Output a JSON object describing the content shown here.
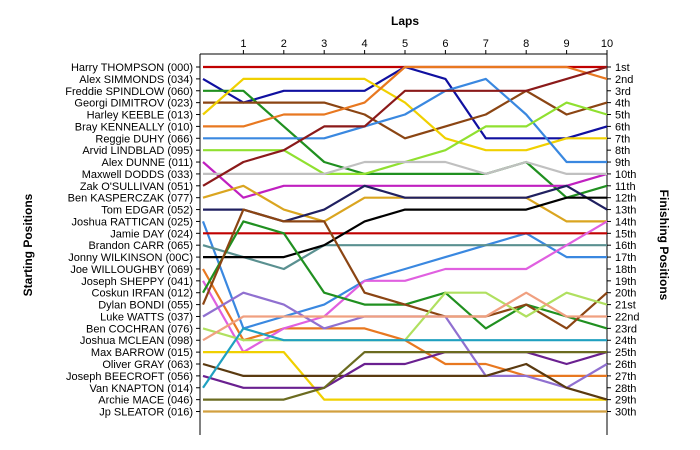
{
  "chart_data": {
    "type": "line",
    "x_title": "Laps",
    "y_left_title": "Starting Positions",
    "y_right_title": "Finishing Positions",
    "laps": [
      1,
      2,
      3,
      4,
      5,
      6,
      7,
      8,
      9,
      10
    ],
    "position_labels": [
      "1st",
      "2nd",
      "3rd",
      "4th",
      "5th",
      "6th",
      "7th",
      "8th",
      "9th",
      "10th",
      "11th",
      "12th",
      "13th",
      "14th",
      "15th",
      "16th",
      "17th",
      "18th",
      "19th",
      "20th",
      "21st",
      "22nd",
      "23rd",
      "24th",
      "25th",
      "26th",
      "27th",
      "28th",
      "29th",
      "30th"
    ],
    "series": [
      {
        "name": "Harry THOMPSON (000)",
        "color": "#C00000",
        "positions": [
          1,
          1,
          1,
          1,
          1,
          1,
          1,
          1,
          1,
          1,
          1
        ]
      },
      {
        "name": "Alex SIMMONDS (034)",
        "color": "#1010A0",
        "positions": [
          2,
          4,
          3,
          3,
          3,
          1,
          2,
          7,
          7,
          7,
          6
        ]
      },
      {
        "name": "Freddie SPINDLOW (060)",
        "color": "#209020",
        "positions": [
          3,
          3,
          6,
          9,
          10,
          10,
          10,
          10,
          9,
          12,
          11
        ]
      },
      {
        "name": "Georgi DIMITROV (023)",
        "color": "#8B4513",
        "positions": [
          4,
          4,
          4,
          4,
          5,
          7,
          6,
          5,
          3,
          5,
          4
        ]
      },
      {
        "name": "Harley KEEBLE (013)",
        "color": "#F0D000",
        "positions": [
          5,
          2,
          2,
          2,
          2,
          4,
          7,
          8,
          8,
          7,
          7
        ]
      },
      {
        "name": "Bray KENNEALLY (010)",
        "color": "#E87820",
        "positions": [
          6,
          6,
          5,
          5,
          4,
          1,
          1,
          1,
          1,
          1,
          2
        ]
      },
      {
        "name": "Reggie DUHY (066)",
        "color": "#3A88E0",
        "positions": [
          7,
          7,
          7,
          7,
          6,
          5,
          3,
          2,
          5,
          9,
          9
        ]
      },
      {
        "name": "Arvid LINDBLAD (095)",
        "color": "#90E030",
        "positions": [
          8,
          8,
          8,
          10,
          10,
          9,
          8,
          6,
          6,
          4,
          5
        ]
      },
      {
        "name": "Alex DUNNE (011)",
        "color": "#C020C0",
        "positions": [
          9,
          12,
          11,
          11,
          11,
          11,
          11,
          11,
          11,
          11,
          10
        ]
      },
      {
        "name": "Maxwell DODDS (033)",
        "color": "#C0C0C0",
        "positions": [
          10,
          10,
          10,
          10,
          9,
          9,
          9,
          10,
          9,
          10,
          10
        ]
      },
      {
        "name": "Zak O'SULLIVAN (051)",
        "color": "#8B1A1A",
        "positions": [
          11,
          9,
          8,
          6,
          6,
          3,
          3,
          3,
          3,
          2,
          1
        ]
      },
      {
        "name": "Ben KASPERCZAK (077)",
        "color": "#DAA520",
        "positions": [
          12,
          11,
          13,
          14,
          12,
          12,
          12,
          12,
          12,
          14,
          14
        ]
      },
      {
        "name": "Tom EDGAR (052)",
        "color": "#202060",
        "positions": [
          13,
          13,
          14,
          13,
          11,
          12,
          12,
          12,
          12,
          11,
          13
        ]
      },
      {
        "name": "Joshua RATTICAN (025)",
        "color": "#3A88E0",
        "positions": [
          14,
          23,
          22,
          21,
          19,
          18,
          17,
          16,
          15,
          17,
          17
        ]
      },
      {
        "name": "Jamie DAY (024)",
        "color": "#C00000",
        "positions": [
          15,
          15,
          15,
          15,
          15,
          15,
          15,
          15,
          15,
          15,
          15
        ]
      },
      {
        "name": "Brandon CARR (065)",
        "color": "#5A9090",
        "positions": [
          16,
          17,
          18,
          16,
          16,
          16,
          16,
          16,
          16,
          16,
          16
        ]
      },
      {
        "name": "Jonny WILKINSON (00C)",
        "color": "#000000",
        "positions": [
          17,
          17,
          17,
          16,
          14,
          13,
          13,
          13,
          13,
          12,
          12
        ]
      },
      {
        "name": "Joe WILLOUGHBY (069)",
        "color": "#E87820",
        "positions": [
          18,
          24,
          23,
          23,
          23,
          24,
          26,
          26,
          27,
          27,
          27
        ]
      },
      {
        "name": "Joseph SHEPPY (041)",
        "color": "#E060E0",
        "positions": [
          19,
          25,
          23,
          22,
          19,
          19,
          18,
          18,
          18,
          16,
          14
        ]
      },
      {
        "name": "Coskun IRFAN (012)",
        "color": "#209020",
        "positions": [
          20,
          14,
          15,
          20,
          21,
          21,
          20,
          23,
          21,
          22,
          23
        ]
      },
      {
        "name": "Dylan BONDI (055)",
        "color": "#8B4513",
        "positions": [
          21,
          13,
          14,
          14,
          20,
          21,
          22,
          22,
          21,
          23,
          20
        ]
      },
      {
        "name": "Luke WATTS (037)",
        "color": "#9070D0",
        "positions": [
          22,
          20,
          21,
          23,
          22,
          22,
          22,
          27,
          27,
          28,
          26
        ]
      },
      {
        "name": "Ben COCHRAN (076)",
        "color": "#B0E060",
        "positions": [
          23,
          24,
          24,
          24,
          24,
          24,
          20,
          20,
          22,
          20,
          21
        ]
      },
      {
        "name": "Joshua MCLEAN (098)",
        "color": "#F0A080",
        "positions": [
          24,
          22,
          22,
          22,
          22,
          22,
          22,
          22,
          20,
          22,
          22
        ]
      },
      {
        "name": "Max BARROW (015)",
        "color": "#F0D000",
        "positions": [
          25,
          25,
          25,
          29,
          29,
          29,
          29,
          29,
          29,
          29,
          29
        ]
      },
      {
        "name": "Oliver GRAY (063)",
        "color": "#5A3A10",
        "positions": [
          26,
          27,
          27,
          27,
          27,
          27,
          27,
          27,
          26,
          28,
          29
        ]
      },
      {
        "name": "Joseph BEECROFT (056)",
        "color": "#6A2090",
        "positions": [
          27,
          28,
          28,
          28,
          26,
          26,
          25,
          25,
          25,
          26,
          25
        ]
      },
      {
        "name": "Van KNAPTON (014)",
        "color": "#20A0C0",
        "positions": [
          28,
          23,
          24,
          24,
          24,
          24,
          24,
          24,
          24,
          24,
          24
        ]
      },
      {
        "name": "Archie MACE (046)",
        "color": "#6B6B20",
        "positions": [
          29,
          29,
          29,
          28,
          25,
          25,
          25,
          25,
          25,
          25,
          25
        ]
      },
      {
        "name": "Jp SLEATOR (016)",
        "color": "#D2A040",
        "positions": [
          30,
          30,
          30,
          30,
          30,
          30,
          30,
          30,
          30,
          30,
          30
        ]
      }
    ]
  }
}
